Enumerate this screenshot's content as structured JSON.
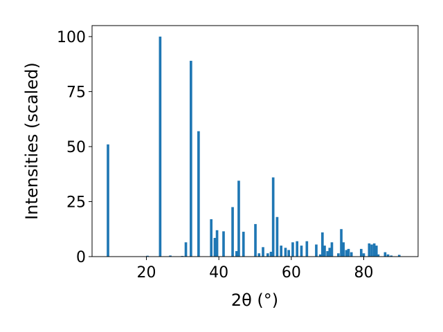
{
  "chart_data": {
    "type": "bar",
    "xlabel": "2θ (°)",
    "ylabel": "Intensities (scaled)",
    "xlim": [
      5,
      95
    ],
    "ylim": [
      0,
      105
    ],
    "xticks": [
      20,
      40,
      60,
      80
    ],
    "yticks": [
      0,
      25,
      50,
      75,
      100
    ],
    "bar_width": 0.7,
    "grid": false,
    "bar_color": "#1f77b4",
    "x": [
      9.4,
      20.3,
      23.8,
      26.6,
      29.9,
      30.9,
      32.3,
      34.4,
      37.9,
      38.9,
      39.5,
      41.3,
      43.8,
      44.9,
      45.5,
      46.8,
      50.1,
      51.1,
      52.2,
      53.5,
      54.4,
      55.0,
      56.1,
      57.2,
      58.4,
      59.3,
      60.4,
      61.6,
      62.8,
      64.3,
      66.9,
      68.0,
      68.6,
      69.2,
      70.0,
      70.6,
      71.2,
      73.0,
      73.8,
      74.4,
      75.2,
      75.8,
      76.6,
      79.3,
      80.0,
      81.5,
      82.2,
      82.9,
      83.5,
      84.0,
      85.9,
      86.7,
      87.6,
      89.8
    ],
    "values": [
      51,
      0.4,
      100,
      0.5,
      0.3,
      6.5,
      89,
      57,
      17,
      8.5,
      12,
      11.5,
      22.5,
      2.5,
      34.5,
      11.3,
      14.8,
      1.5,
      4.3,
      1.5,
      2.2,
      36,
      18,
      5,
      4,
      3,
      6.5,
      7,
      5,
      7,
      5.5,
      1,
      11,
      5,
      2.5,
      4,
      6.5,
      1.5,
      12.5,
      6.5,
      3,
      3.5,
      2,
      3.5,
      1.5,
      6,
      5.5,
      6,
      5,
      1,
      2,
      1,
      0.5,
      0.8
    ]
  }
}
